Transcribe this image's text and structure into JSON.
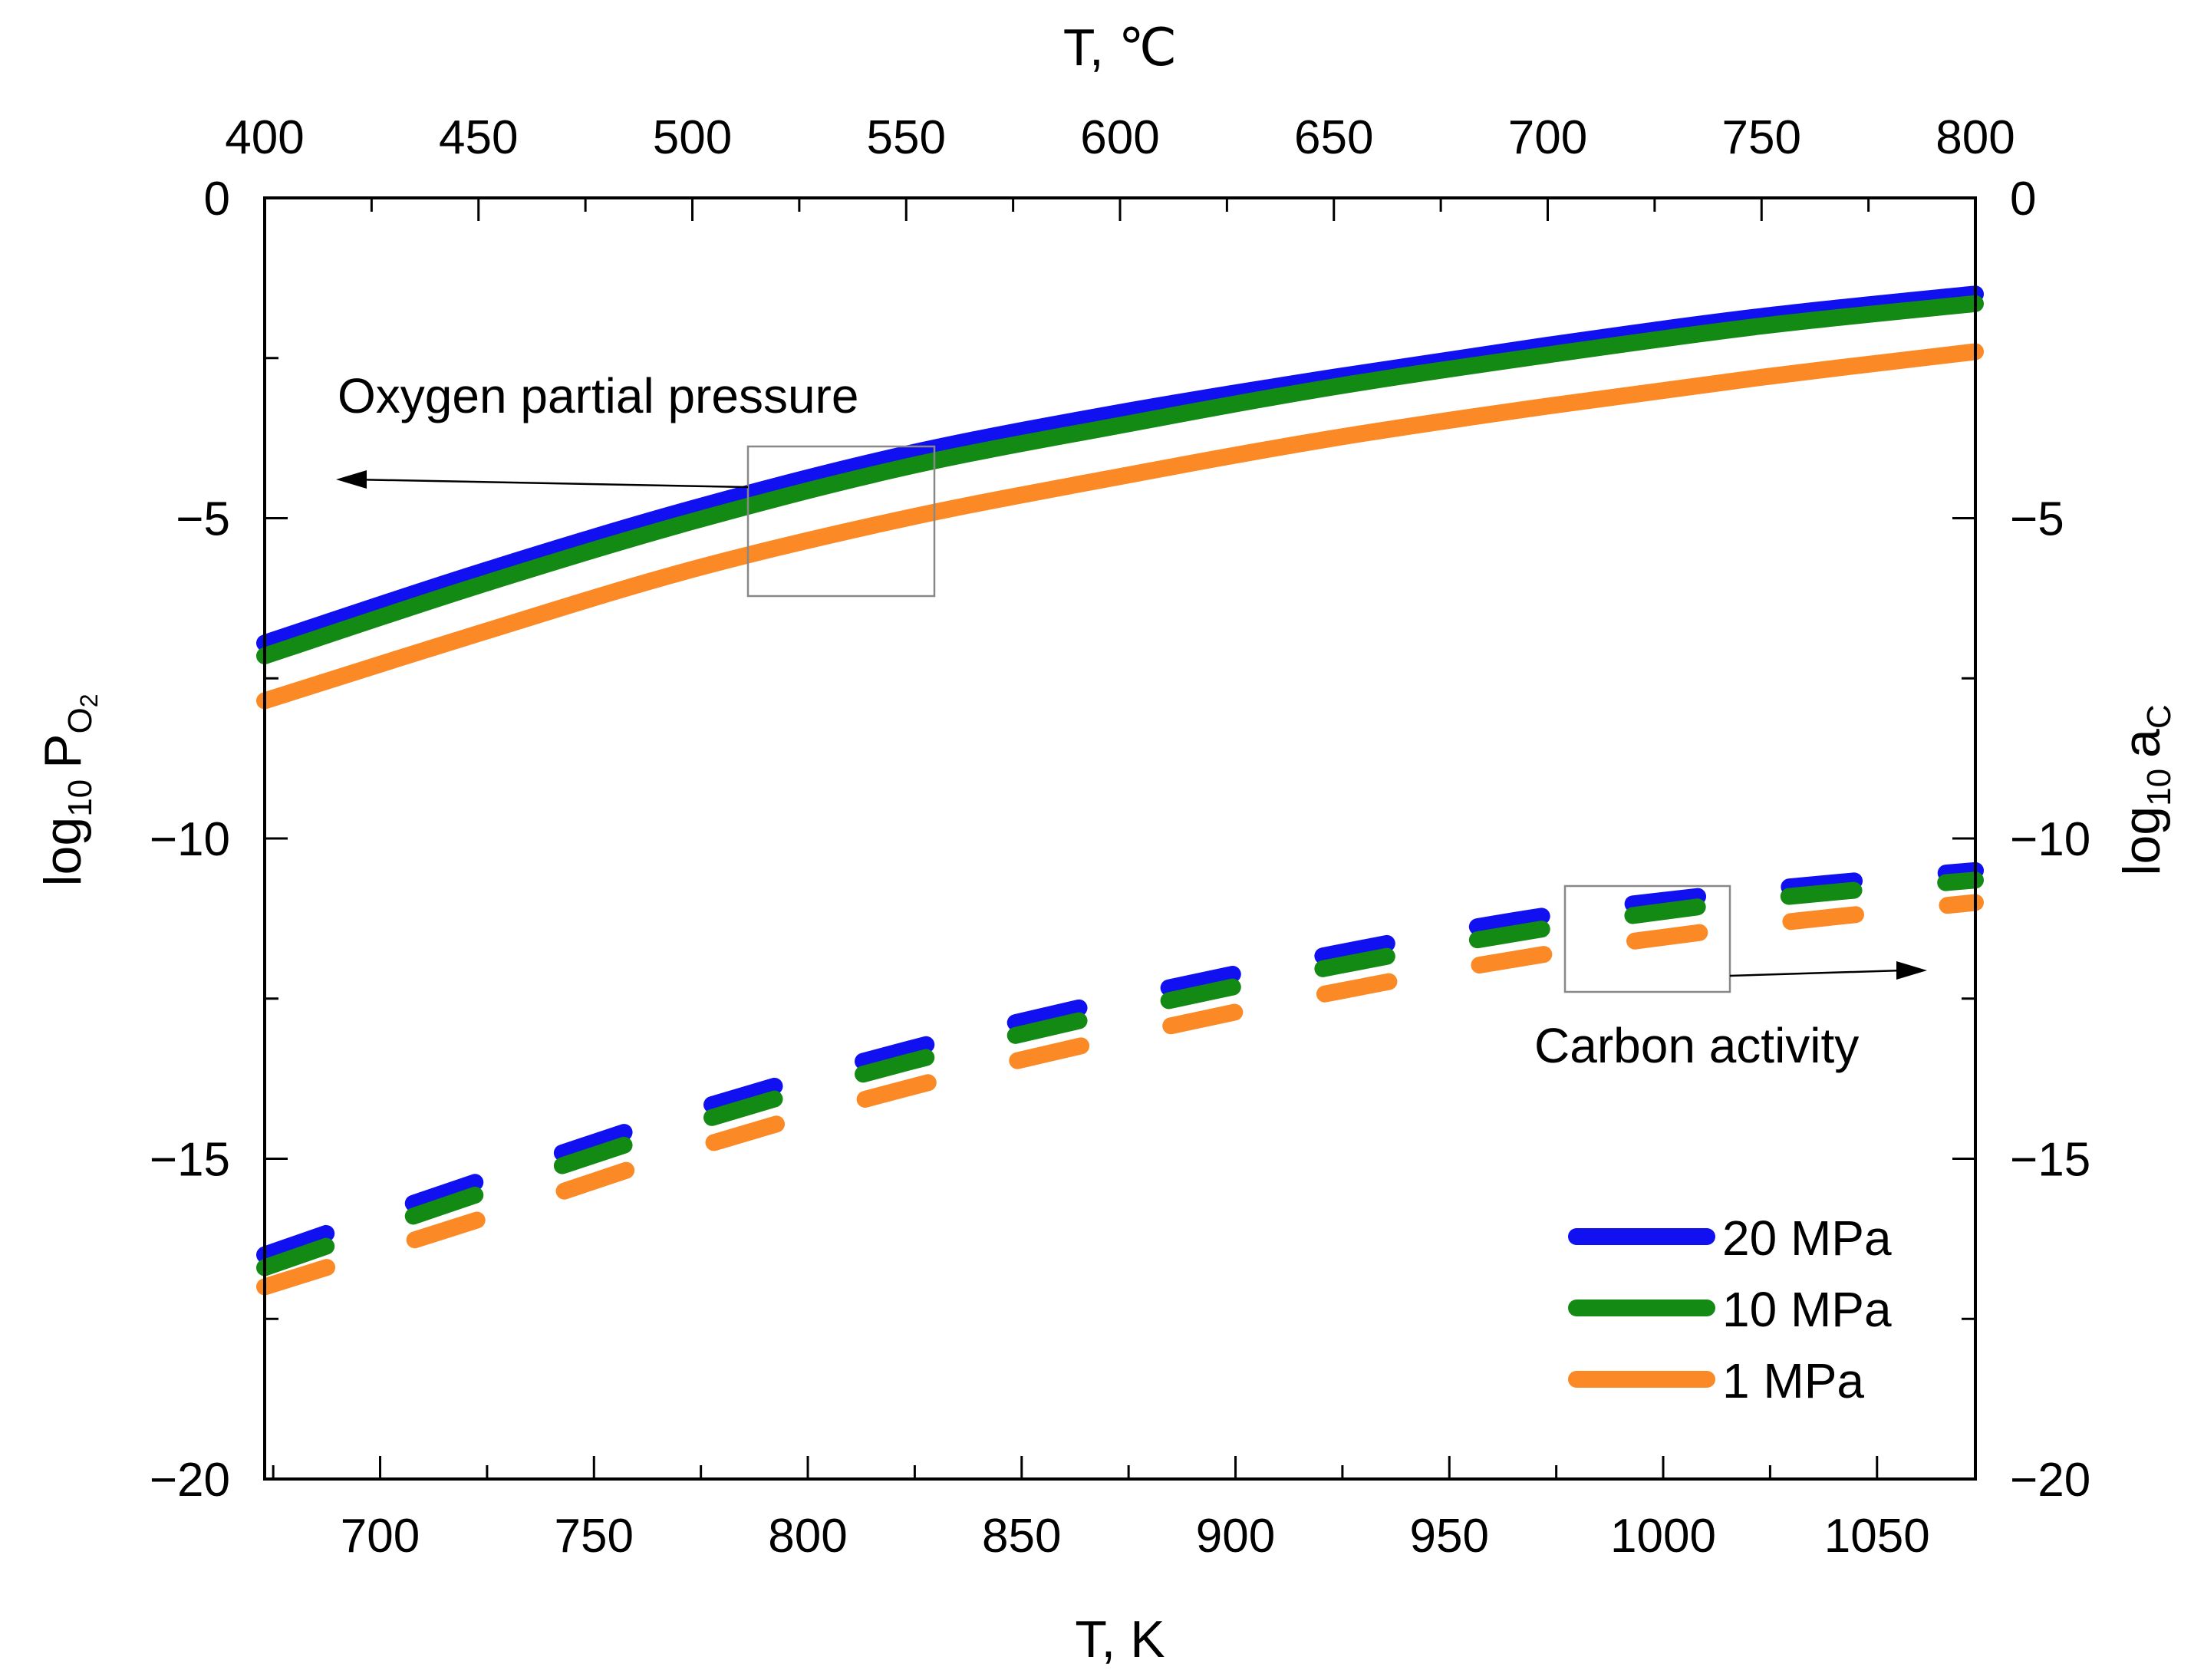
{
  "chart_data": {
    "type": "line",
    "x_bottom": {
      "label": "T, K",
      "range": [
        673,
        1073
      ],
      "ticks": [
        700,
        750,
        800,
        850,
        900,
        950,
        1000,
        1050
      ]
    },
    "x_top": {
      "label": "T, ℃",
      "range": [
        400,
        800
      ],
      "ticks": [
        400,
        450,
        500,
        550,
        600,
        650,
        700,
        750,
        800
      ]
    },
    "y_left": {
      "label_main": "log",
      "label_sub": "10",
      "label_var": "P",
      "label_var_sub": "O",
      "label_var_subsub": "2",
      "range": [
        -20,
        0
      ],
      "ticks": [
        0,
        -5,
        -10,
        -15,
        -20
      ],
      "tick_labels": [
        "0",
        "−5",
        "−10",
        "−15",
        "−20"
      ]
    },
    "y_right": {
      "label_main": "log",
      "label_sub": "10",
      "label_var": "a",
      "label_var_sub": "C",
      "range": [
        -20,
        0
      ],
      "ticks": [
        0,
        -5,
        -10,
        -15,
        -20
      ],
      "tick_labels": [
        "0",
        "−5",
        "−10",
        "−15",
        "−20"
      ]
    },
    "x": [
      673,
      723,
      773,
      823,
      873,
      923,
      973,
      1023,
      1073
    ],
    "series": [
      {
        "name": "20 MPa",
        "group": "oxygen",
        "style": "solid",
        "color": "#1010f0",
        "values": [
          -6.95,
          -5.85,
          -4.85,
          -4.0,
          -3.35,
          -2.8,
          -2.3,
          -1.85,
          -1.5
        ]
      },
      {
        "name": "10 MPa",
        "group": "oxygen",
        "style": "solid",
        "color": "#138a13",
        "values": [
          -7.15,
          -6.05,
          -5.05,
          -4.2,
          -3.55,
          -2.95,
          -2.45,
          -2.0,
          -1.65
        ]
      },
      {
        "name": "1 MPa",
        "group": "oxygen",
        "style": "solid",
        "color": "#fb8a26",
        "values": [
          -7.85,
          -6.8,
          -5.8,
          -5.0,
          -4.35,
          -3.75,
          -3.25,
          -2.8,
          -2.4
        ]
      },
      {
        "name": "20 MPa",
        "group": "carbon",
        "style": "dashed",
        "color": "#1010f0",
        "values": [
          -16.5,
          -15.35,
          -14.25,
          -13.3,
          -12.5,
          -11.8,
          -11.2,
          -10.8,
          -10.5
        ]
      },
      {
        "name": "10 MPa",
        "group": "carbon",
        "style": "dashed",
        "color": "#138a13",
        "values": [
          -16.7,
          -15.55,
          -14.45,
          -13.5,
          -12.7,
          -12.0,
          -11.4,
          -10.95,
          -10.65
        ]
      },
      {
        "name": "1 MPa",
        "group": "carbon",
        "style": "dashed",
        "color": "#fb8a26",
        "values": [
          -17.0,
          -15.95,
          -14.85,
          -13.9,
          -13.1,
          -12.4,
          -11.8,
          -11.35,
          -11.0
        ]
      }
    ],
    "annotations": [
      {
        "text": "Oxygen partial pressure",
        "points_to": "left-axis"
      },
      {
        "text": "Carbon activity",
        "points_to": "right-axis"
      }
    ],
    "legend": {
      "position": "bottom-right",
      "entries": [
        {
          "label": "20 MPa",
          "color": "#1010f0"
        },
        {
          "label": "10 MPa",
          "color": "#138a13"
        },
        {
          "label": "1 MPa",
          "color": "#fb8a26"
        }
      ]
    }
  }
}
